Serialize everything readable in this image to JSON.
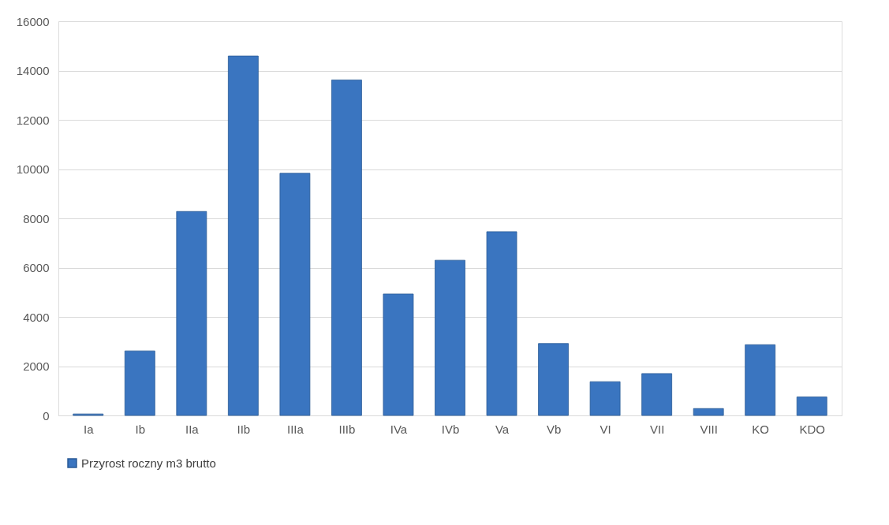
{
  "chart_data": {
    "type": "bar",
    "categories": [
      "Ia",
      "Ib",
      "IIa",
      "IIb",
      "IIIa",
      "IIIb",
      "IVa",
      "IVb",
      "Va",
      "Vb",
      "VI",
      "VII",
      "VIII",
      "KO",
      "KDO"
    ],
    "series": [
      {
        "name": "Przyrost roczny m3 brutto",
        "color": "#3a75c0",
        "values": [
          60,
          2620,
          8280,
          14590,
          9830,
          13620,
          4930,
          6300,
          7460,
          2920,
          1370,
          1700,
          280,
          2870,
          750
        ]
      }
    ],
    "ylim": [
      0,
      16000
    ],
    "yticks": [
      0,
      2000,
      4000,
      6000,
      8000,
      10000,
      12000,
      14000,
      16000
    ],
    "grid": "y",
    "legend": "bottom"
  }
}
